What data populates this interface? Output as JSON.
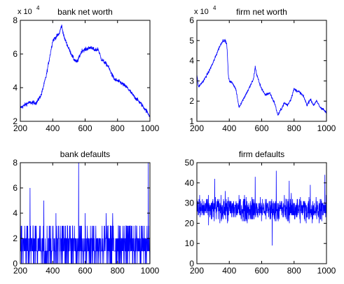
{
  "line_color": "#0000ff",
  "axes_color": "#000000",
  "chart_data": [
    {
      "type": "line",
      "title": "bank net worth",
      "exponent": {
        "base": "x 10",
        "power": "4"
      },
      "xlim": [
        200,
        1000
      ],
      "ylim": [
        2,
        8
      ],
      "xticks": [
        200,
        400,
        600,
        800,
        1000
      ],
      "yticks": [
        2,
        4,
        6,
        8
      ],
      "xticklabels": [
        "200",
        "400",
        "600",
        "800",
        "1000"
      ],
      "yticklabels": [
        "2",
        "4",
        "6",
        "8"
      ],
      "series": [
        {
          "x": [
            200,
            250,
            300,
            330,
            360,
            400,
            420,
            440,
            455,
            470,
            500,
            530,
            550,
            580,
            610,
            640,
            660,
            680,
            700,
            740,
            780,
            820,
            860,
            900,
            940,
            980,
            1000
          ],
          "y": [
            2.8,
            3.1,
            3.1,
            3.6,
            4.7,
            6.8,
            7.0,
            7.2,
            7.7,
            7.0,
            6.3,
            5.7,
            5.5,
            6.2,
            6.3,
            6.4,
            6.2,
            6.3,
            5.7,
            5.3,
            4.5,
            4.3,
            4.0,
            3.5,
            3.1,
            2.6,
            2.3
          ],
          "noise": 0.12
        }
      ]
    },
    {
      "type": "line",
      "title": "firm net worth",
      "exponent": {
        "base": "x 10",
        "power": "4"
      },
      "xlim": [
        200,
        1000
      ],
      "ylim": [
        1,
        6
      ],
      "xticks": [
        200,
        400,
        600,
        800,
        1000
      ],
      "yticks": [
        1,
        2,
        3,
        4,
        5,
        6
      ],
      "xticklabels": [
        "200",
        "400",
        "600",
        "800",
        "1000"
      ],
      "yticklabels": [
        "1",
        "2",
        "3",
        "4",
        "5",
        "6"
      ],
      "series": [
        {
          "x": [
            200,
            210,
            240,
            270,
            300,
            320,
            340,
            360,
            375,
            385,
            395,
            400,
            420,
            440,
            460,
            480,
            500,
            520,
            550,
            560,
            570,
            590,
            620,
            650,
            680,
            700,
            720,
            740,
            760,
            780,
            800,
            820,
            840,
            860,
            880,
            900,
            920,
            940,
            960,
            980,
            1000
          ],
          "y": [
            3.3,
            2.7,
            3.0,
            3.4,
            3.9,
            4.3,
            4.7,
            5.0,
            5.0,
            4.8,
            3.2,
            3.0,
            2.9,
            2.6,
            1.7,
            2.0,
            2.3,
            2.6,
            3.1,
            3.7,
            3.3,
            2.8,
            2.3,
            2.4,
            1.9,
            1.3,
            1.6,
            1.9,
            1.8,
            2.1,
            2.6,
            2.5,
            2.4,
            2.2,
            1.8,
            2.1,
            1.8,
            2.0,
            1.7,
            1.6,
            1.4
          ],
          "noise": 0.07
        }
      ]
    },
    {
      "type": "line",
      "title": "bank defaults",
      "xlim": [
        200,
        1000
      ],
      "ylim": [
        0,
        8
      ],
      "xticks": [
        200,
        400,
        600,
        800,
        1000
      ],
      "yticks": [
        0,
        2,
        4,
        6,
        8
      ],
      "xticklabels": [
        "200",
        "400",
        "600",
        "800",
        "1000"
      ],
      "yticklabels": [
        "0",
        "2",
        "4",
        "6",
        "8"
      ],
      "series": [
        {
          "discrete_range": [
            0,
            3
          ],
          "spikes": [
            {
              "x": 260,
              "y": 6
            },
            {
              "x": 345,
              "y": 5
            },
            {
              "x": 420,
              "y": 4
            },
            {
              "x": 560,
              "y": 8
            },
            {
              "x": 600,
              "y": 4
            },
            {
              "x": 730,
              "y": 4
            },
            {
              "x": 770,
              "y": 4
            },
            {
              "x": 990,
              "y": 8
            }
          ]
        }
      ]
    },
    {
      "type": "line",
      "title": "firm defaults",
      "xlim": [
        200,
        1000
      ],
      "ylim": [
        0,
        50
      ],
      "xticks": [
        200,
        400,
        600,
        800,
        1000
      ],
      "yticks": [
        0,
        10,
        20,
        30,
        40,
        50
      ],
      "xticklabels": [
        "200",
        "400",
        "600",
        "800",
        "1000"
      ],
      "yticklabels": [
        "0",
        "10",
        "20",
        "30",
        "40",
        "50"
      ],
      "series": [
        {
          "mean": 27,
          "spread": 6,
          "spikes": [
            {
              "x": 310,
              "y": 42
            },
            {
              "x": 560,
              "y": 43
            },
            {
              "x": 665,
              "y": 9
            },
            {
              "x": 690,
              "y": 46
            },
            {
              "x": 770,
              "y": 41
            },
            {
              "x": 900,
              "y": 39
            },
            {
              "x": 990,
              "y": 44
            }
          ]
        }
      ]
    }
  ]
}
